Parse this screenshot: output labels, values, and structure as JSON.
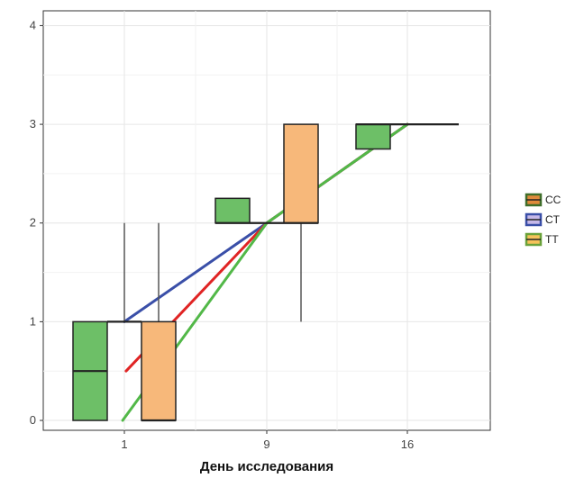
{
  "chart_data": {
    "type": "boxplot",
    "title": "",
    "xlabel": "День исследования",
    "ylabel": "",
    "categories": [
      "1",
      "9",
      "16"
    ],
    "ylim": [
      -0.1,
      4.15
    ],
    "yticks": [
      "0",
      "1",
      "2",
      "3",
      "4"
    ],
    "grid": true,
    "legend_position": "right",
    "series": [
      {
        "name": "CC",
        "color": "#6dbf67",
        "trend_color": "#52b848",
        "boxes": [
          {
            "day": "1",
            "min": 0,
            "q1": 0,
            "median": 0.5,
            "q3": 1,
            "max": 1
          },
          {
            "day": "9",
            "min": 2,
            "q1": 2,
            "median": 2,
            "q3": 2.25,
            "max": 2.25
          },
          {
            "day": "16",
            "min": 2.75,
            "q1": 2.75,
            "median": 3,
            "q3": 3,
            "max": 3
          }
        ],
        "trend": [
          0,
          2,
          3
        ]
      },
      {
        "name": "CT",
        "color": "#b9a8d6",
        "trend_color": "#3a4fa8",
        "boxes": [
          {
            "day": "1",
            "min": 1,
            "q1": 1,
            "median": 1,
            "q3": 1,
            "max": 2
          },
          {
            "day": "9",
            "min": 2,
            "q1": 2,
            "median": 2,
            "q3": 2,
            "max": 2
          },
          {
            "day": "16",
            "min": 3,
            "q1": 3,
            "median": 3,
            "q3": 3,
            "max": 3
          }
        ],
        "trend": [
          1,
          2,
          3
        ]
      },
      {
        "name": "TT",
        "color": "#f7b87a",
        "trend_color": "#e02424",
        "boxes": [
          {
            "day": "1",
            "min": 0,
            "q1": 0,
            "median": 0,
            "q3": 1,
            "max": 2
          },
          {
            "day": "9",
            "min": 1,
            "q1": 2,
            "median": 2,
            "q3": 3,
            "max": 3
          },
          {
            "day": "16",
            "min": 3,
            "q1": 3,
            "median": 3,
            "q3": 3,
            "max": 3
          }
        ],
        "trend": [
          0.5,
          2,
          3
        ]
      }
    ],
    "legend": [
      {
        "label": "CC",
        "fill": "#e08a3c",
        "stroke": "#3f6e2a"
      },
      {
        "label": "CT",
        "fill": "#c6b8e8",
        "stroke": "#3a4fa8"
      },
      {
        "label": "TT",
        "fill": "#f6c25a",
        "stroke": "#6aa23a"
      }
    ]
  }
}
